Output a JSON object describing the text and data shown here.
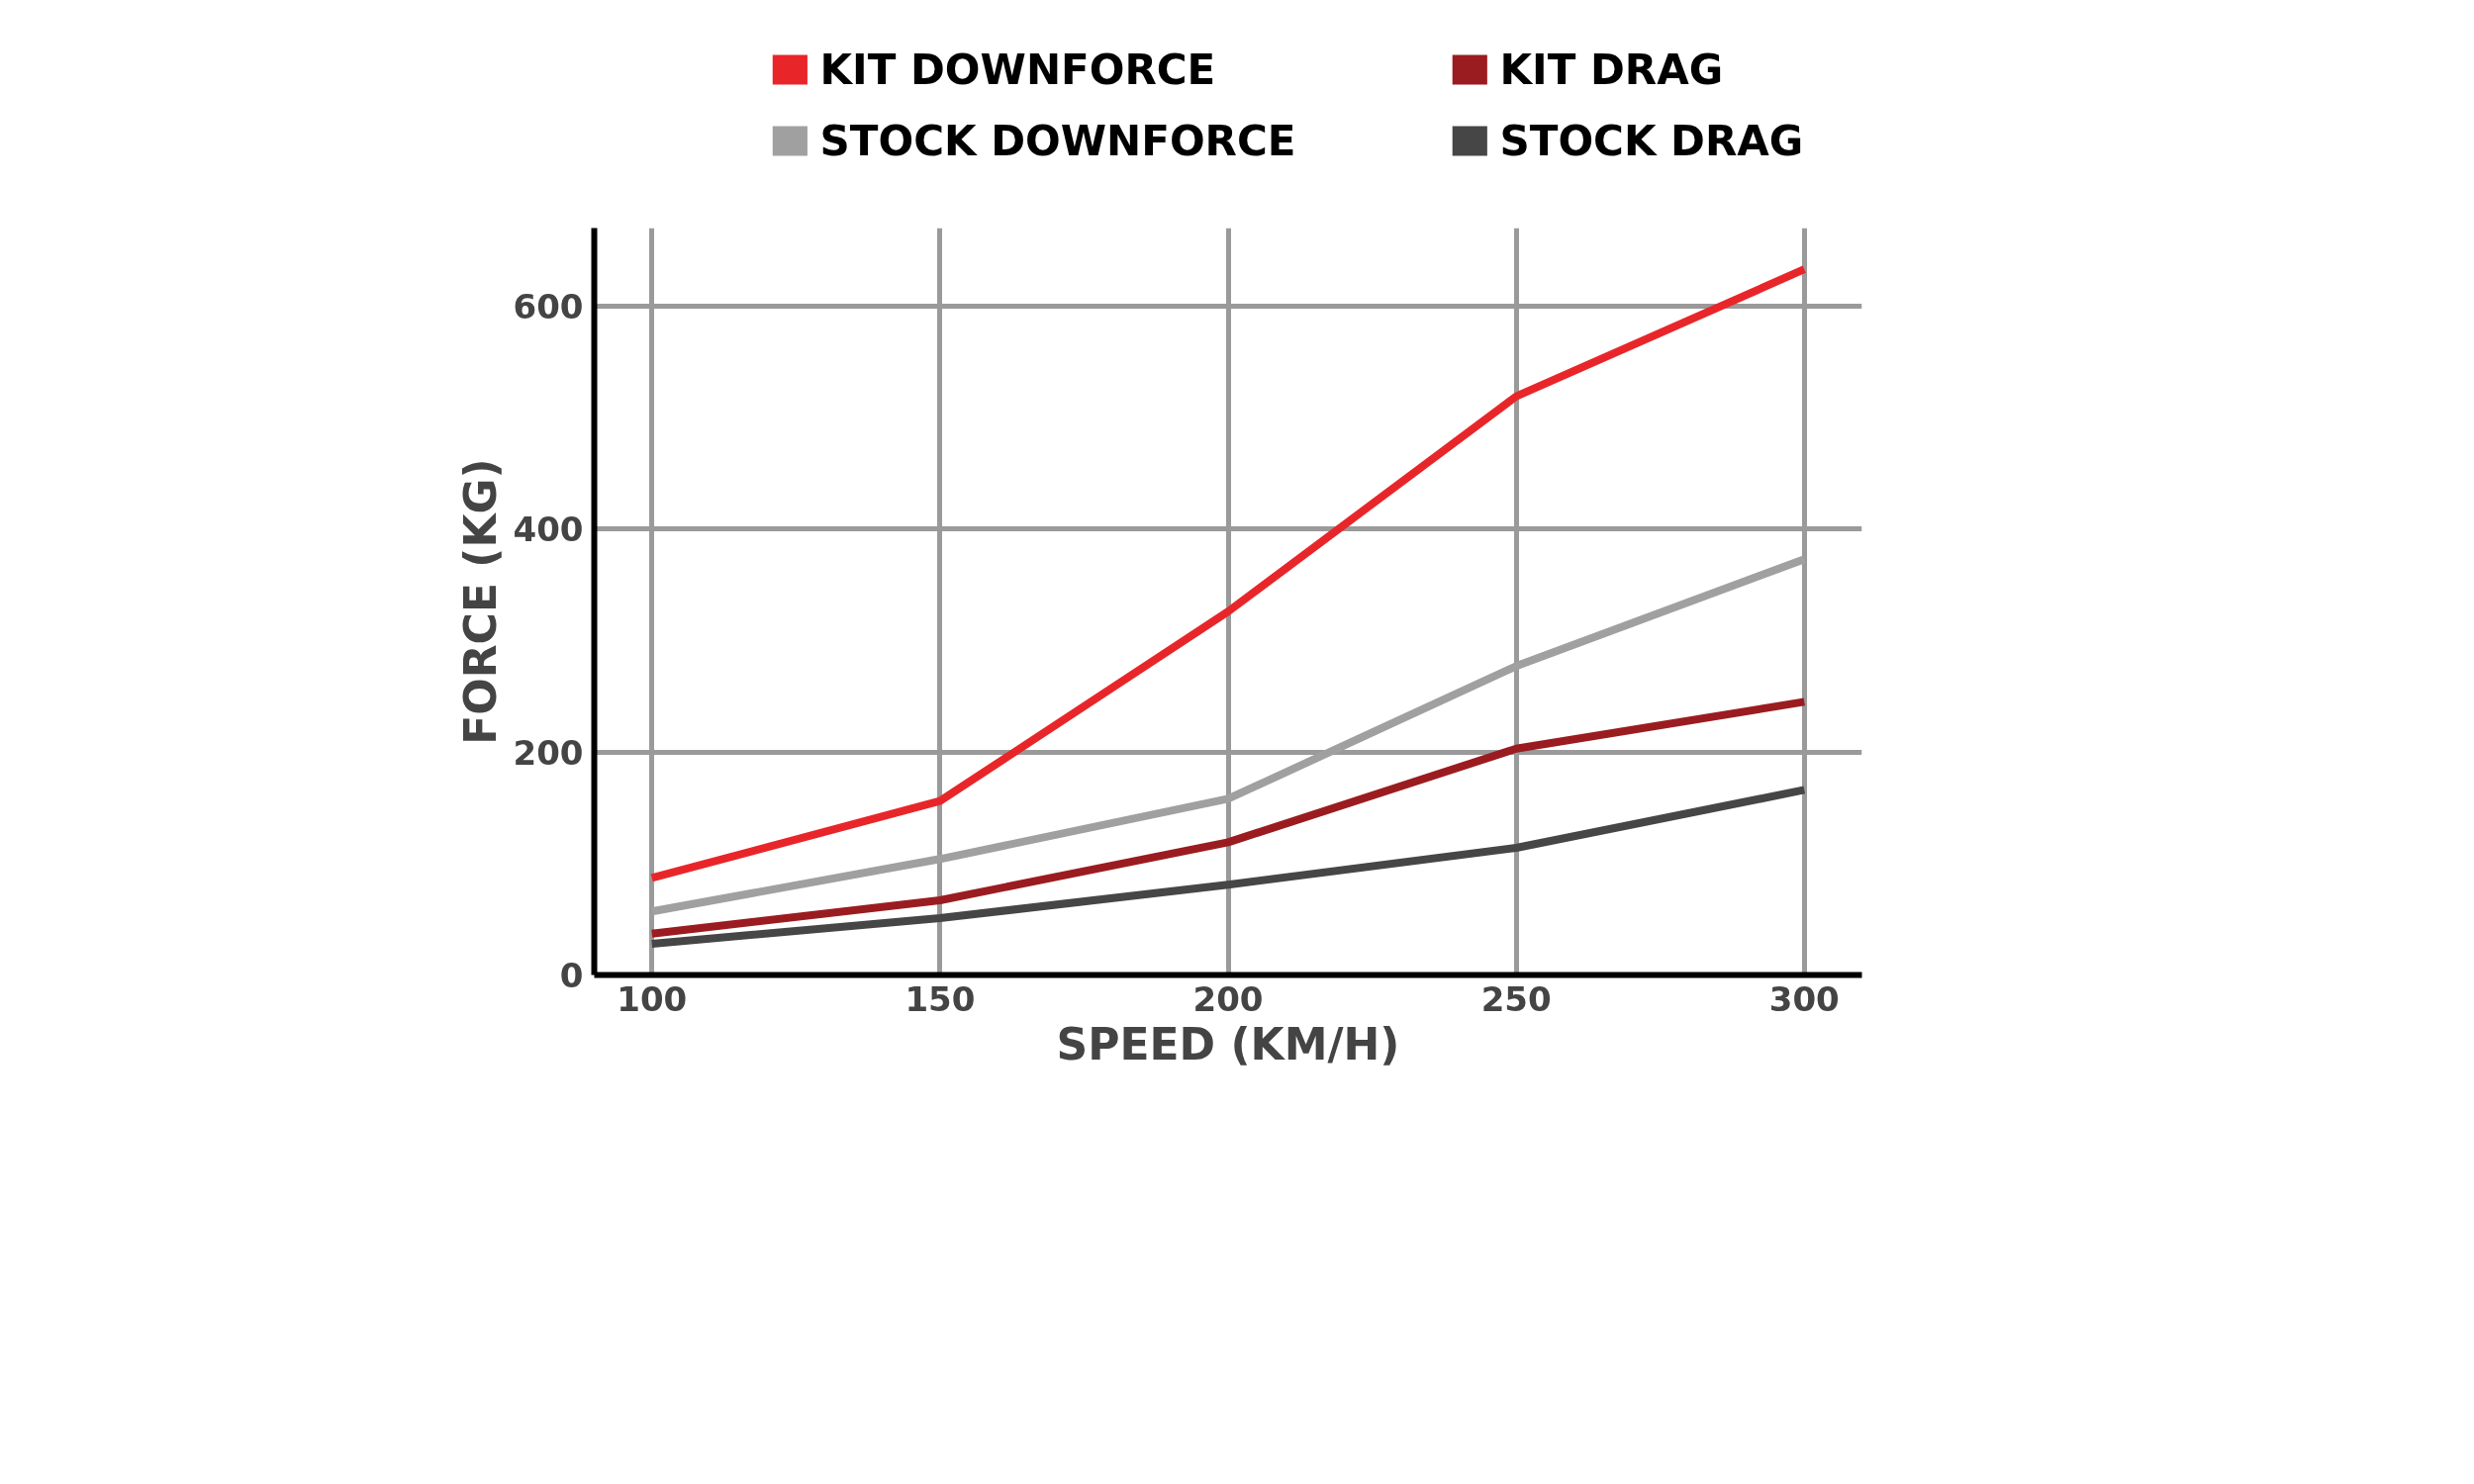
{
  "chart_data": {
    "type": "line",
    "xlabel": "SPEED (KM/H)",
    "ylabel": "FORCE (KG)",
    "x": [
      100,
      150,
      200,
      250,
      300
    ],
    "series": [
      {
        "name": "KIT DOWNFORCE",
        "color": "#e8262a",
        "values": [
          87,
          156,
          326,
          519,
          633
        ]
      },
      {
        "name": "KIT DRAG",
        "color": "#9b1c20",
        "values": [
          37,
          67,
          119,
          203,
          245
        ]
      },
      {
        "name": "STOCK DOWNFORCE",
        "color": "#a0a0a0",
        "values": [
          57,
          104,
          158,
          277,
          373
        ]
      },
      {
        "name": "STOCK DRAG",
        "color": "#464646",
        "values": [
          28,
          51,
          81,
          114,
          166
        ]
      }
    ],
    "xlim": [
      90,
      310
    ],
    "xticks": [
      100,
      150,
      200,
      250,
      300
    ],
    "ylim": [
      0,
      670
    ],
    "yticks": [
      0,
      200,
      400,
      600
    ],
    "grid": true,
    "legend": "top",
    "marker": "none",
    "line_style": "solid"
  }
}
